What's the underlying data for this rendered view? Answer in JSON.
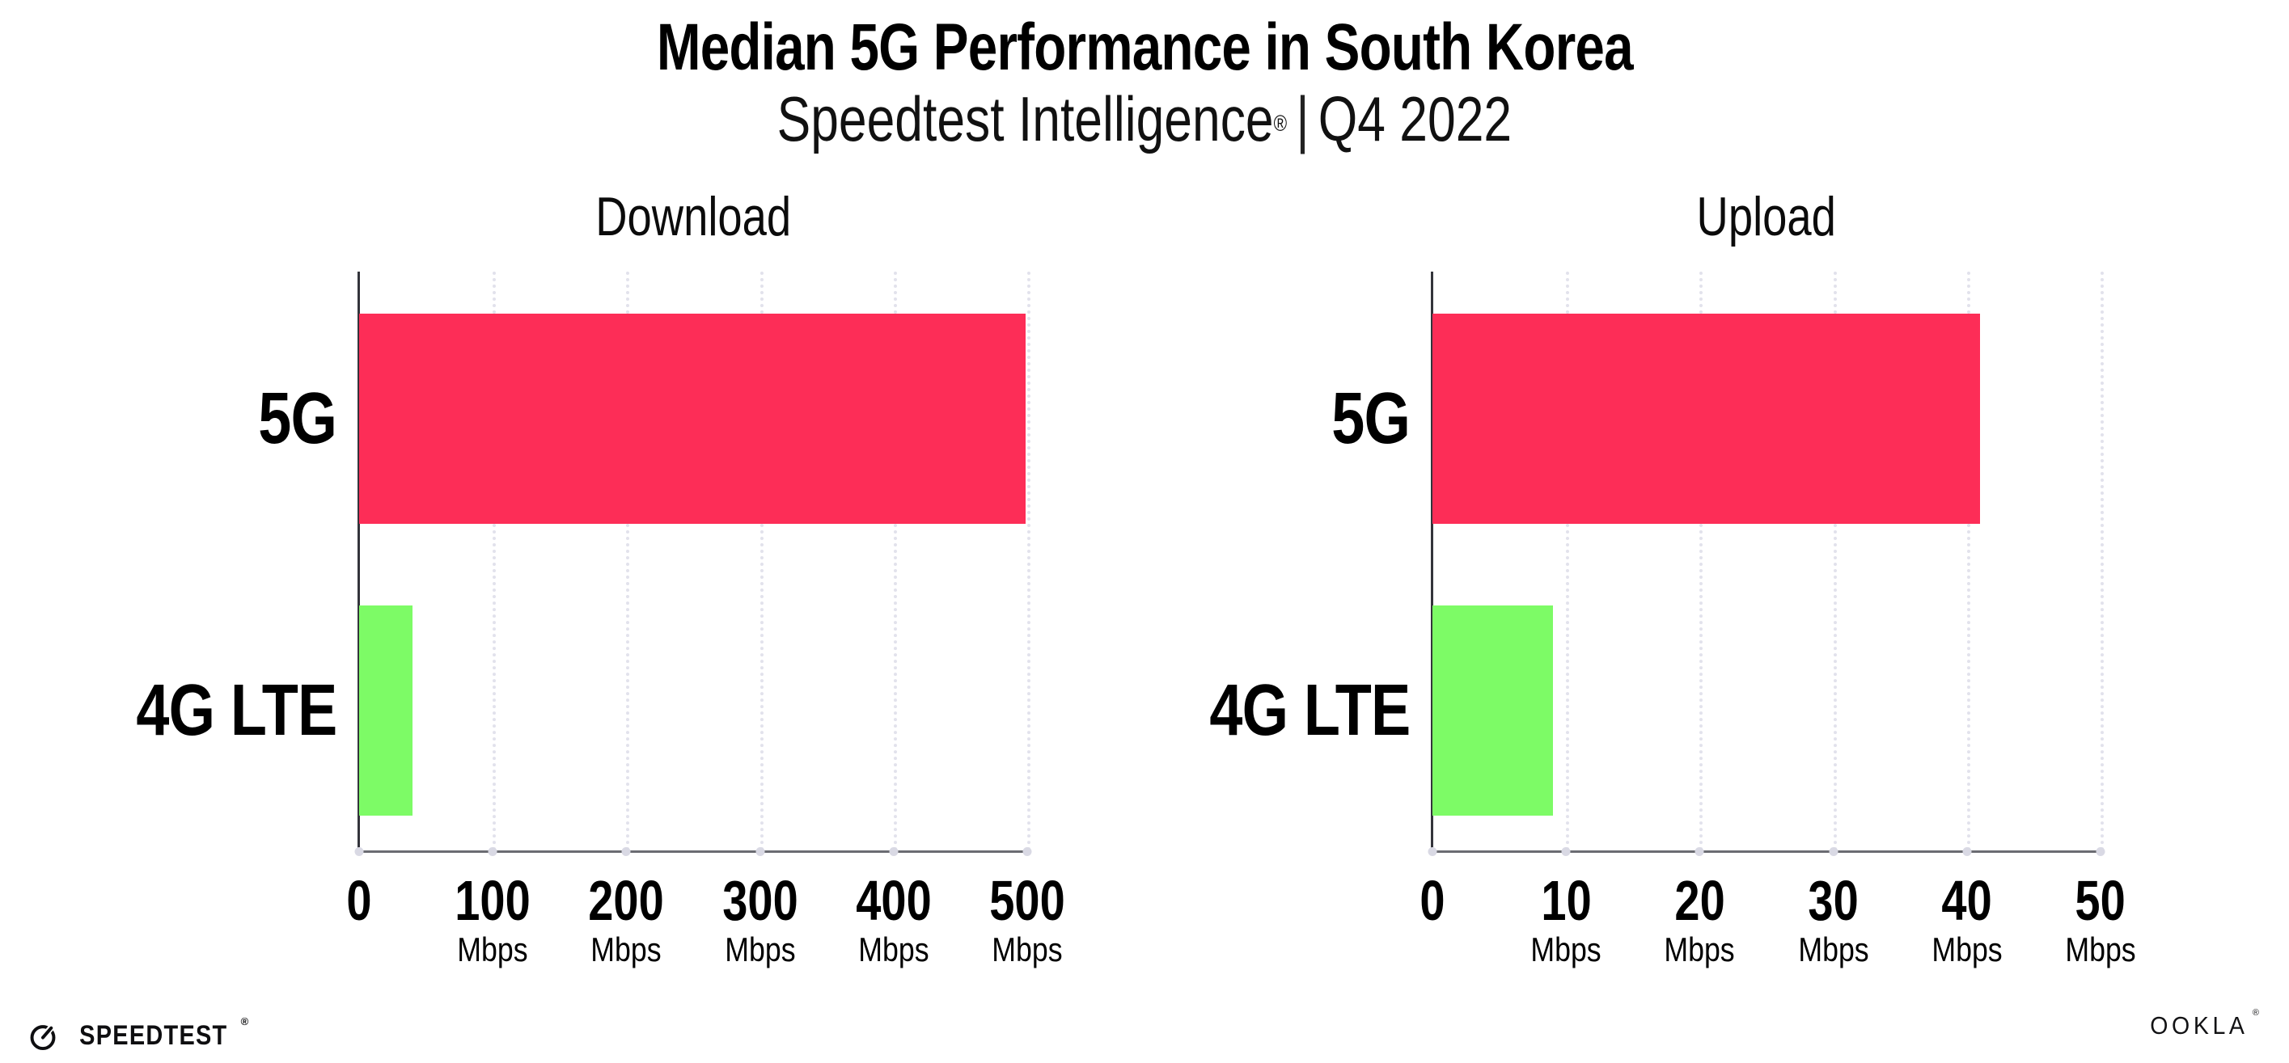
{
  "header": {
    "title": "Median 5G Performance in South Korea",
    "subtitle_brand": "Speedtest Intelligence",
    "subtitle_reg": "®",
    "subtitle_separator": "|",
    "subtitle_period": "Q4 2022"
  },
  "chart_data": [
    {
      "type": "bar",
      "orientation": "horizontal",
      "title": "Download",
      "categories": [
        "5G",
        "4G LTE"
      ],
      "values": [
        499,
        40
      ],
      "unit": "Mbps",
      "xlabel": "",
      "ylabel": "",
      "xlim": [
        0,
        500
      ],
      "ticks": [
        0,
        100,
        200,
        300,
        400,
        500
      ],
      "tick_unit_label": "Mbps",
      "grid": "vertical-dotted",
      "legend": "none",
      "bar_colors": [
        "#FD2D57",
        "#7DFB66"
      ]
    },
    {
      "type": "bar",
      "orientation": "horizontal",
      "title": "Upload",
      "categories": [
        "5G",
        "4G LTE"
      ],
      "values": [
        41,
        9
      ],
      "unit": "Mbps",
      "xlabel": "",
      "ylabel": "",
      "xlim": [
        0,
        50
      ],
      "ticks": [
        0,
        10,
        20,
        30,
        40,
        50
      ],
      "tick_unit_label": "Mbps",
      "grid": "vertical-dotted",
      "legend": "none",
      "bar_colors": [
        "#FD2D57",
        "#7DFB66"
      ]
    }
  ],
  "colors": {
    "background": "#FFFFFF",
    "bar_5g": "#FD2D57",
    "bar_4g_lte": "#7DFB66",
    "gridline": "#E2E2EC",
    "y_axis": "#33343B",
    "x_axis": "#6B6C72",
    "tick_dot": "#D9D9E4",
    "text": "#000000"
  },
  "footer": {
    "speedtest_label": "SPEEDTEST",
    "speedtest_reg": "®",
    "ookla_label": "OOKLA",
    "ookla_reg": "®"
  }
}
